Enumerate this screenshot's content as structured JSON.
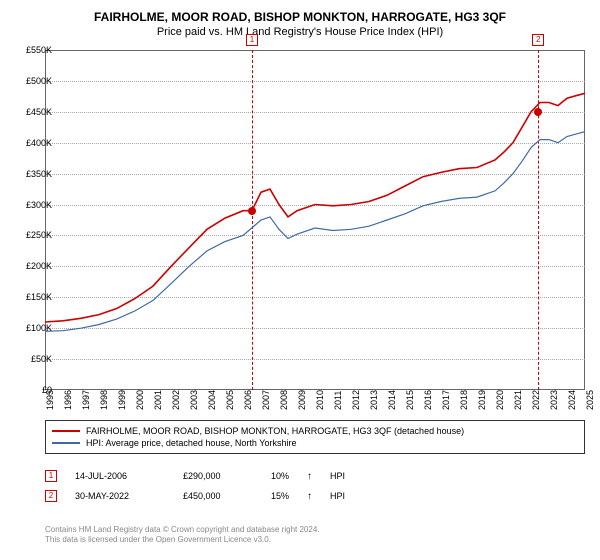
{
  "chart": {
    "title": "FAIRHOLME, MOOR ROAD, BISHOP MONKTON, HARROGATE, HG3 3QF",
    "subtitle": "Price paid vs. HM Land Registry's House Price Index (HPI)",
    "type": "line",
    "background_color": "#ffffff",
    "fontsize_title": 12,
    "fontsize_subtitle": 11,
    "fontsize_axis": 9,
    "ylim": [
      0,
      550000
    ],
    "ytick_step": 50000,
    "ylabels": [
      "£0",
      "£50K",
      "£100K",
      "£150K",
      "£200K",
      "£250K",
      "£300K",
      "£350K",
      "£400K",
      "£450K",
      "£500K",
      "£550K"
    ],
    "xlim": [
      1995,
      2025
    ],
    "xlabels": [
      "1995",
      "1996",
      "1997",
      "1998",
      "1999",
      "2000",
      "2001",
      "2002",
      "2003",
      "2004",
      "2005",
      "2006",
      "2007",
      "2008",
      "2009",
      "2010",
      "2011",
      "2012",
      "2013",
      "2014",
      "2015",
      "2016",
      "2017",
      "2018",
      "2019",
      "2020",
      "2021",
      "2022",
      "2023",
      "2024",
      "2025"
    ],
    "grid_color": "#aaaaaa",
    "border_color": "#666666",
    "series": [
      {
        "name": "FAIRHOLME, MOOR ROAD, BISHOP MONKTON, HARROGATE, HG3 3QF (detached house)",
        "color": "#cc0000",
        "line_width": 1.6,
        "data": [
          [
            1995,
            110000
          ],
          [
            1996,
            112000
          ],
          [
            1997,
            116000
          ],
          [
            1998,
            122000
          ],
          [
            1999,
            132000
          ],
          [
            2000,
            148000
          ],
          [
            2001,
            168000
          ],
          [
            2002,
            200000
          ],
          [
            2003,
            230000
          ],
          [
            2004,
            260000
          ],
          [
            2005,
            278000
          ],
          [
            2006,
            290000
          ],
          [
            2006.5,
            290000
          ],
          [
            2007,
            320000
          ],
          [
            2007.5,
            325000
          ],
          [
            2008,
            300000
          ],
          [
            2008.5,
            280000
          ],
          [
            2009,
            290000
          ],
          [
            2010,
            300000
          ],
          [
            2011,
            298000
          ],
          [
            2012,
            300000
          ],
          [
            2013,
            305000
          ],
          [
            2014,
            315000
          ],
          [
            2015,
            330000
          ],
          [
            2016,
            345000
          ],
          [
            2017,
            352000
          ],
          [
            2018,
            358000
          ],
          [
            2019,
            360000
          ],
          [
            2020,
            372000
          ],
          [
            2020.5,
            385000
          ],
          [
            2021,
            400000
          ],
          [
            2021.5,
            425000
          ],
          [
            2022,
            450000
          ],
          [
            2022.5,
            465000
          ],
          [
            2023,
            465000
          ],
          [
            2023.5,
            460000
          ],
          [
            2024,
            472000
          ],
          [
            2024.5,
            476000
          ],
          [
            2025,
            480000
          ]
        ]
      },
      {
        "name": "HPI: Average price, detached house, North Yorkshire",
        "color": "#4169aa",
        "line_width": 1.2,
        "data": [
          [
            1995,
            95000
          ],
          [
            1996,
            96000
          ],
          [
            1997,
            100000
          ],
          [
            1998,
            106000
          ],
          [
            1999,
            115000
          ],
          [
            2000,
            128000
          ],
          [
            2001,
            145000
          ],
          [
            2002,
            172000
          ],
          [
            2003,
            200000
          ],
          [
            2004,
            225000
          ],
          [
            2005,
            240000
          ],
          [
            2006,
            250000
          ],
          [
            2007,
            275000
          ],
          [
            2007.5,
            280000
          ],
          [
            2008,
            260000
          ],
          [
            2008.5,
            245000
          ],
          [
            2009,
            252000
          ],
          [
            2010,
            262000
          ],
          [
            2011,
            258000
          ],
          [
            2012,
            260000
          ],
          [
            2013,
            265000
          ],
          [
            2014,
            275000
          ],
          [
            2015,
            285000
          ],
          [
            2016,
            298000
          ],
          [
            2017,
            305000
          ],
          [
            2018,
            310000
          ],
          [
            2019,
            312000
          ],
          [
            2020,
            322000
          ],
          [
            2020.5,
            335000
          ],
          [
            2021,
            350000
          ],
          [
            2021.5,
            370000
          ],
          [
            2022,
            392000
          ],
          [
            2022.5,
            405000
          ],
          [
            2023,
            405000
          ],
          [
            2023.5,
            400000
          ],
          [
            2024,
            410000
          ],
          [
            2024.5,
            414000
          ],
          [
            2025,
            418000
          ]
        ]
      }
    ],
    "markers": [
      {
        "id": "1",
        "x": 2006.5,
        "y": 290000
      },
      {
        "id": "2",
        "x": 2022.4,
        "y": 450000
      }
    ]
  },
  "legend": {
    "items": [
      {
        "color": "#cc0000",
        "label": "FAIRHOLME, MOOR ROAD, BISHOP MONKTON, HARROGATE, HG3 3QF (detached house)"
      },
      {
        "color": "#4169aa",
        "label": "HPI: Average price, detached house, North Yorkshire"
      }
    ]
  },
  "sales": [
    {
      "id": "1",
      "date": "14-JUL-2006",
      "price": "£290,000",
      "pct": "10%",
      "arrow": "↑",
      "hpi_label": "HPI"
    },
    {
      "id": "2",
      "date": "30-MAY-2022",
      "price": "£450,000",
      "pct": "15%",
      "arrow": "↑",
      "hpi_label": "HPI"
    }
  ],
  "footer": {
    "line1": "Contains HM Land Registry data © Crown copyright and database right 2024.",
    "line2": "This data is licensed under the Open Government Licence v3.0."
  }
}
